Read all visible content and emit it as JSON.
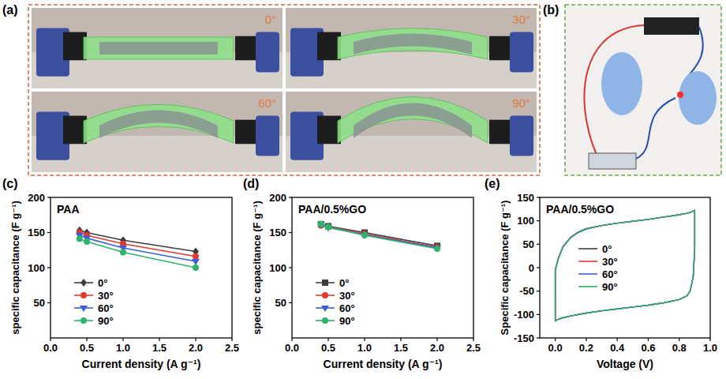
{
  "photos": {
    "a": {
      "panel": "(a)",
      "labels": [
        "0°",
        "30°",
        "60°",
        "90°"
      ]
    },
    "b": {
      "panel": "(b)"
    }
  },
  "chart_data": [
    {
      "type": "line",
      "panel": "(c)",
      "title": "PAA",
      "x_label": "Current density (A g⁻¹)",
      "y_label": "specific capacitance (F g⁻¹)",
      "x": [
        0.4,
        0.5,
        1,
        2
      ],
      "series": [
        {
          "name": "0°",
          "color": "#3d3d3d",
          "marker": "diamond",
          "values": [
            153,
            150,
            139,
            123
          ]
        },
        {
          "name": "30°",
          "color": "#e5392f",
          "marker": "circle",
          "values": [
            150,
            146,
            134,
            116
          ]
        },
        {
          "name": "60°",
          "color": "#3a5fd9",
          "marker": "triangle-down",
          "values": [
            146,
            142,
            128,
            109
          ]
        },
        {
          "name": "90°",
          "color": "#2db36a",
          "marker": "circle",
          "values": [
            141,
            137,
            122,
            100
          ]
        }
      ],
      "xlim": [
        0,
        2.5
      ],
      "xticks": [
        {
          "value": 0,
          "label": "0.0"
        },
        {
          "value": 0.5,
          "label": "0.5"
        },
        {
          "value": 1,
          "label": "1.0"
        },
        {
          "value": 1.5,
          "label": "1.5"
        },
        {
          "value": 2,
          "label": "2.0"
        },
        {
          "value": 2.5,
          "label": "2.5"
        }
      ],
      "ylim": [
        0,
        200
      ],
      "yticks": [
        50,
        100,
        150,
        200
      ],
      "grid": false,
      "legend": "lower left"
    },
    {
      "type": "line",
      "panel": "(d)",
      "title": "PAA/0.5%GO",
      "x_label": "Current density (A g⁻¹)",
      "y_label": "specific capacitance (F g⁻¹)",
      "x": [
        0.4,
        0.5,
        1,
        2
      ],
      "series": [
        {
          "name": "0°",
          "color": "#3d3d3d",
          "marker": "square",
          "values": [
            162,
            159,
            150,
            131
          ]
        },
        {
          "name": "30°",
          "color": "#e5392f",
          "marker": "circle",
          "values": [
            160,
            158,
            148,
            129
          ]
        },
        {
          "name": "60°",
          "color": "#3a5fd9",
          "marker": "triangle-down",
          "values": [
            161,
            157,
            147,
            128
          ]
        },
        {
          "name": "90°",
          "color": "#2db36a",
          "marker": "circle",
          "values": [
            162,
            158,
            146,
            127
          ]
        }
      ],
      "xlim": [
        0,
        2.5
      ],
      "xticks": [
        {
          "value": 0,
          "label": "0.0"
        },
        {
          "value": 0.5,
          "label": "0.5"
        },
        {
          "value": 1,
          "label": "1.0"
        },
        {
          "value": 1.5,
          "label": "1.5"
        },
        {
          "value": 2,
          "label": "2.0"
        },
        {
          "value": 2.5,
          "label": "2.5"
        }
      ],
      "ylim": [
        0,
        200
      ],
      "yticks": [
        50,
        100,
        150,
        200
      ],
      "grid": false,
      "legend": "lower left"
    },
    {
      "type": "line",
      "panel": "(e)",
      "title": "PAA/0.5%GO",
      "x_label": "Voltage (V)",
      "y_label": "Specific capacitance (F g⁻¹)",
      "x": [
        0,
        0.02,
        0.05,
        0.1,
        0.15,
        0.2,
        0.3,
        0.4,
        0.5,
        0.6,
        0.7,
        0.8,
        0.85,
        0.88,
        0.9,
        0.9,
        0.89,
        0.87,
        0.85,
        0.8,
        0.7,
        0.6,
        0.5,
        0.4,
        0.3,
        0.2,
        0.1,
        0.05,
        0.02,
        0,
        0
      ],
      "series": [
        {
          "name": "0°",
          "color": "#3d3d3d",
          "values": [
            -5,
            20,
            45,
            65,
            76,
            83,
            90,
            95,
            99,
            103,
            108,
            113,
            116,
            119,
            123,
            40,
            -20,
            -50,
            -60,
            -68,
            -75,
            -80,
            -84,
            -88,
            -92,
            -97,
            -103,
            -107,
            -110,
            -114,
            -5
          ]
        },
        {
          "name": "30°",
          "color": "#e5392f",
          "values": [
            -5,
            20,
            45,
            65,
            76,
            83,
            90,
            95,
            99,
            103,
            108,
            113,
            116,
            119,
            123,
            40,
            -20,
            -50,
            -60,
            -68,
            -75,
            -80,
            -84,
            -88,
            -92,
            -97,
            -103,
            -107,
            -110,
            -114,
            -5
          ]
        },
        {
          "name": "60°",
          "color": "#3a5fd9",
          "values": [
            -5,
            20,
            44,
            64,
            76,
            83,
            90,
            95,
            99,
            103,
            108,
            113,
            116,
            119,
            122,
            40,
            -20,
            -50,
            -60,
            -68,
            -75,
            -80,
            -84,
            -88,
            -92,
            -97,
            -103,
            -107,
            -110,
            -113,
            -5
          ]
        },
        {
          "name": "90°",
          "color": "#2db36a",
          "values": [
            -5,
            19,
            44,
            64,
            75,
            82,
            90,
            95,
            99,
            103,
            108,
            113,
            116,
            119,
            122,
            40,
            -20,
            -50,
            -60,
            -68,
            -75,
            -80,
            -84,
            -88,
            -92,
            -97,
            -103,
            -107,
            -110,
            -113,
            -5
          ]
        }
      ],
      "xlim": [
        -0.1,
        1.0
      ],
      "xticks": [
        {
          "value": 0,
          "label": "0.0"
        },
        {
          "value": 0.2,
          "label": "0.2"
        },
        {
          "value": 0.4,
          "label": "0.4"
        },
        {
          "value": 0.6,
          "label": "0.6"
        },
        {
          "value": 0.8,
          "label": "0.8"
        },
        {
          "value": 1.0,
          "label": "1.0"
        }
      ],
      "ylim": [
        -150,
        150
      ],
      "yticks": [
        -150,
        -100,
        -50,
        0,
        50,
        100,
        150
      ],
      "grid": false,
      "legend": "center"
    }
  ]
}
